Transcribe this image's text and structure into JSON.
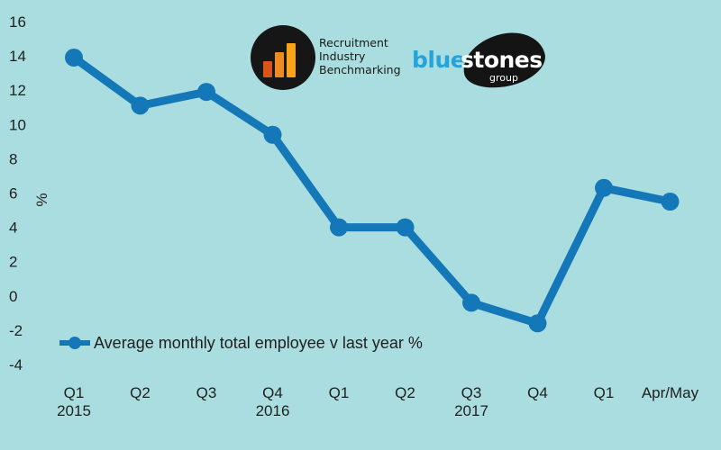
{
  "logos": {
    "rib_text": "Recruitment\nIndustry\nBenchmarking",
    "bs_blue": "blue",
    "bs_stones": "stones",
    "bs_group": "group"
  },
  "colors": {
    "background": "#a9dde0",
    "series": "#1478b8"
  },
  "chart_data": {
    "type": "line",
    "ylabel": "%",
    "ylim": [
      -4,
      16
    ],
    "yticks": [
      "16",
      "14",
      "12",
      "10",
      "8",
      "6",
      "4",
      "2",
      "0",
      "-2",
      "-4"
    ],
    "ytick_values": [
      16,
      14,
      12,
      10,
      8,
      6,
      4,
      2,
      0,
      -2,
      -4
    ],
    "categories": [
      "Q1",
      "Q2",
      "Q3",
      "Q4",
      "Q1",
      "Q2",
      "Q3",
      "Q4",
      "Q1",
      "Apr/May"
    ],
    "category_years": [
      "2015",
      "",
      "",
      "2016",
      "",
      "",
      "2017",
      "",
      "",
      ""
    ],
    "series": [
      {
        "name": "Average monthly total employee v last year %",
        "values": [
          13.9,
          11.1,
          11.9,
          9.4,
          4.0,
          4.0,
          -0.4,
          -1.6,
          6.3,
          5.5
        ]
      }
    ],
    "legend_position": "bottom-left",
    "grid": false
  }
}
